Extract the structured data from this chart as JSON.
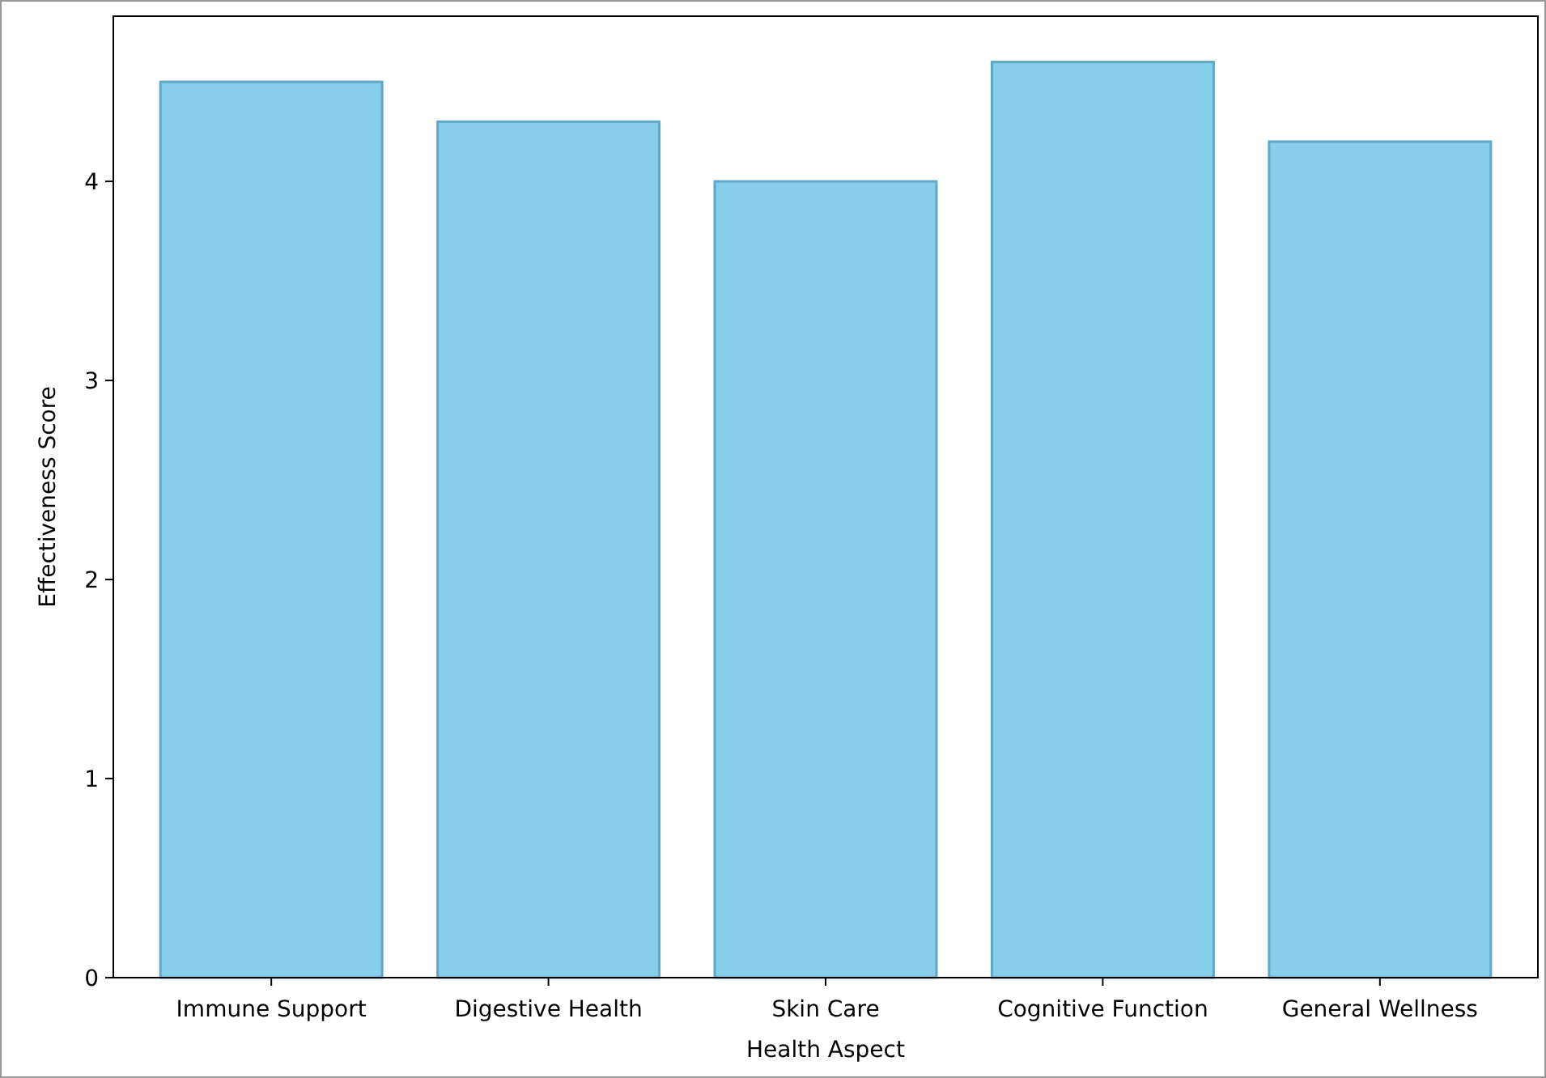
{
  "chart_data": {
    "type": "bar",
    "xlabel": "Health Aspect",
    "ylabel": "Effectiveness Score",
    "categories": [
      "Immune Support",
      "Digestive Health",
      "Skin Care",
      "Cognitive Function",
      "General Wellness"
    ],
    "values": [
      4.5,
      4.3,
      4.0,
      4.6,
      4.2
    ],
    "color": "#87ceeb",
    "ylim": [
      0,
      4.83
    ],
    "yticks": [
      0,
      1,
      2,
      3,
      4
    ],
    "grid": false
  }
}
